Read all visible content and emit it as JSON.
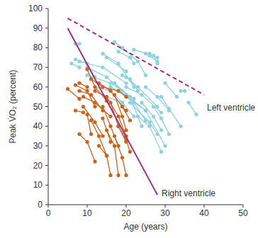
{
  "chart_data": {
    "type": "line",
    "x_label": "Age (years)",
    "y_label": "Peak V̇O₂ (percent)",
    "xlim": [
      0,
      50
    ],
    "xticks": [
      0,
      10,
      20,
      30,
      40,
      50
    ],
    "ylim": [
      0,
      100
    ],
    "yticks": [
      0,
      10,
      20,
      30,
      40,
      50,
      60,
      70,
      80,
      90,
      100
    ],
    "grid": false,
    "series": [
      {
        "color": "#8fd2df",
        "marker": "circle",
        "line_style": "solid",
        "x": [
          7,
          8
        ],
        "values": [
          82,
          82
        ]
      },
      {
        "color": "#8fd2df",
        "marker": "circle",
        "line_style": "solid",
        "x": [
          7,
          10,
          12
        ],
        "values": [
          74,
          72,
          65
        ]
      },
      {
        "color": "#8fd2df",
        "marker": "circle",
        "line_style": "solid",
        "x": [
          6,
          8
        ],
        "values": [
          72,
          70
        ]
      },
      {
        "color": "#8fd2df",
        "marker": "circle",
        "line_style": "solid",
        "x": [
          8,
          14,
          20
        ],
        "values": [
          73,
          70,
          62
        ]
      },
      {
        "color": "#8fd2df",
        "marker": "circle",
        "line_style": "solid",
        "x": [
          10,
          15,
          19
        ],
        "values": [
          70,
          65,
          58
        ]
      },
      {
        "color": "#8fd2df",
        "marker": "circle",
        "line_style": "solid",
        "x": [
          14,
          18,
          22
        ],
        "values": [
          77,
          72,
          60
        ]
      },
      {
        "color": "#8fd2df",
        "marker": "circle",
        "line_style": "solid",
        "x": [
          15,
          20
        ],
        "values": [
          75,
          68
        ]
      },
      {
        "color": "#8fd2df",
        "marker": "circle",
        "line_style": "solid",
        "x": [
          10,
          16,
          22
        ],
        "values": [
          66,
          62,
          54
        ]
      },
      {
        "color": "#8fd2df",
        "marker": "circle",
        "line_style": "solid",
        "x": [
          17,
          19,
          23,
          25
        ],
        "values": [
          83,
          80,
          73,
          66
        ]
      },
      {
        "color": "#8fd2df",
        "marker": "circle",
        "line_style": "solid",
        "x": [
          18,
          21,
          22
        ],
        "values": [
          78,
          75,
          72
        ]
      },
      {
        "color": "#8fd2df",
        "marker": "circle",
        "line_style": "solid",
        "x": [
          22,
          25,
          28
        ],
        "values": [
          79,
          77,
          75
        ]
      },
      {
        "color": "#8fd2df",
        "marker": "circle",
        "line_style": "solid",
        "x": [
          26,
          27,
          28
        ],
        "values": [
          77,
          76,
          72
        ]
      },
      {
        "color": "#8fd2df",
        "marker": "circle",
        "line_style": "solid",
        "x": [
          26,
          28
        ],
        "values": [
          76,
          73
        ]
      },
      {
        "color": "#8fd2df",
        "marker": "circle",
        "line_style": "solid",
        "x": [
          20,
          23,
          28
        ],
        "values": [
          65,
          60,
          50
        ]
      },
      {
        "color": "#8fd2df",
        "marker": "circle",
        "line_style": "solid",
        "x": [
          20,
          24,
          29
        ],
        "values": [
          60,
          56,
          47
        ]
      },
      {
        "color": "#8fd2df",
        "marker": "circle",
        "line_style": "solid",
        "x": [
          16,
          20,
          25
        ],
        "values": [
          60,
          56,
          48
        ]
      },
      {
        "color": "#8fd2df",
        "marker": "circle",
        "line_style": "solid",
        "x": [
          18,
          22,
          25
        ],
        "values": [
          58,
          52,
          43
        ]
      },
      {
        "color": "#8fd2df",
        "marker": "circle",
        "line_style": "solid",
        "x": [
          17,
          21,
          24
        ],
        "values": [
          62,
          55,
          40
        ]
      },
      {
        "color": "#8fd2df",
        "marker": "circle",
        "line_style": "solid",
        "x": [
          15,
          19,
          22
        ],
        "values": [
          55,
          52,
          45
        ]
      },
      {
        "color": "#8fd2df",
        "marker": "circle",
        "line_style": "solid",
        "x": [
          20,
          25,
          30
        ],
        "values": [
          55,
          48,
          30
        ]
      },
      {
        "color": "#8fd2df",
        "marker": "circle",
        "line_style": "solid",
        "x": [
          21,
          26,
          28
        ],
        "values": [
          52,
          42,
          36
        ]
      },
      {
        "color": "#8fd2df",
        "marker": "circle",
        "line_style": "solid",
        "x": [
          24,
          27,
          29
        ],
        "values": [
          52,
          45,
          38
        ]
      },
      {
        "color": "#8fd2df",
        "marker": "circle",
        "line_style": "solid",
        "x": [
          25,
          28,
          31
        ],
        "values": [
          60,
          55,
          48
        ]
      },
      {
        "color": "#8fd2df",
        "marker": "circle",
        "line_style": "solid",
        "x": [
          29,
          31,
          34
        ],
        "values": [
          55,
          49,
          40
        ]
      },
      {
        "color": "#8fd2df",
        "marker": "circle",
        "line_style": "solid",
        "x": [
          34,
          35
        ],
        "values": [
          58,
          58
        ]
      },
      {
        "color": "#8fd2df",
        "marker": "circle",
        "line_style": "solid",
        "x": [
          36,
          38
        ],
        "values": [
          52,
          46
        ]
      },
      {
        "color": "#8fd2df",
        "marker": "circle",
        "line_style": "solid",
        "x": [
          30,
          33
        ],
        "values": [
          62,
          55
        ]
      },
      {
        "color": "#8fd2df",
        "marker": "circle",
        "line_style": "solid",
        "x": [
          23,
          26,
          29
        ],
        "values": [
          45,
          40,
          27
        ]
      },
      {
        "color": "#8fd2df",
        "marker": "circle",
        "line_style": "solid",
        "x": [
          27,
          29,
          31
        ],
        "values": [
          50,
          44,
          36
        ]
      },
      {
        "color": "#8fd2df",
        "marker": "circle",
        "line_style": "solid",
        "x": [
          12,
          16,
          19
        ],
        "values": [
          60,
          58,
          52
        ]
      },
      {
        "color": "#8fd2df",
        "marker": "circle",
        "line_style": "solid",
        "x": [
          19,
          21,
          23
        ],
        "values": [
          66,
          64,
          58
        ]
      },
      {
        "color": "#c8641e",
        "marker": "circle",
        "line_style": "solid",
        "x": [
          5,
          8
        ],
        "values": [
          59,
          54
        ]
      },
      {
        "color": "#c8641e",
        "marker": "circle",
        "line_style": "solid",
        "x": [
          7,
          10,
          12
        ],
        "values": [
          61,
          58,
          50
        ]
      },
      {
        "color": "#c8641e",
        "marker": "circle",
        "line_style": "solid",
        "x": [
          8,
          11,
          14
        ],
        "values": [
          58,
          56,
          48
        ]
      },
      {
        "color": "#c8641e",
        "marker": "circle",
        "line_style": "solid",
        "x": [
          10,
          12,
          15
        ],
        "values": [
          69,
          60,
          53
        ]
      },
      {
        "color": "#c8641e",
        "marker": "circle",
        "line_style": "solid",
        "x": [
          11,
          14,
          18,
          20
        ],
        "values": [
          64,
          60,
          58,
          55
        ]
      },
      {
        "color": "#c8641e",
        "marker": "circle",
        "line_style": "solid",
        "x": [
          9,
          12,
          16
        ],
        "values": [
          55,
          52,
          45
        ]
      },
      {
        "color": "#c8641e",
        "marker": "circle",
        "line_style": "solid",
        "x": [
          7,
          9
        ],
        "values": [
          48,
          47
        ]
      },
      {
        "color": "#c8641e",
        "marker": "circle",
        "line_style": "solid",
        "x": [
          9,
          12,
          14
        ],
        "values": [
          50,
          42,
          35
        ]
      },
      {
        "color": "#c8641e",
        "marker": "circle",
        "line_style": "solid",
        "x": [
          8,
          10,
          12
        ],
        "values": [
          36,
          32,
          22
        ]
      },
      {
        "color": "#c8641e",
        "marker": "circle",
        "line_style": "solid",
        "x": [
          10,
          11
        ],
        "values": [
          46,
          36
        ]
      },
      {
        "color": "#c8641e",
        "marker": "circle",
        "line_style": "solid",
        "x": [
          11,
          13,
          15
        ],
        "values": [
          43,
          35,
          25
        ]
      },
      {
        "color": "#c8641e",
        "marker": "circle",
        "line_style": "solid",
        "x": [
          12,
          15,
          18,
          20
        ],
        "values": [
          58,
          55,
          45,
          35
        ]
      },
      {
        "color": "#c8641e",
        "marker": "circle",
        "line_style": "solid",
        "x": [
          13,
          16,
          19,
          21
        ],
        "values": [
          62,
          58,
          50,
          43
        ]
      },
      {
        "color": "#c8641e",
        "marker": "circle",
        "line_style": "solid",
        "x": [
          14,
          16,
          18
        ],
        "values": [
          50,
          40,
          30
        ]
      },
      {
        "color": "#c8641e",
        "marker": "circle",
        "line_style": "solid",
        "x": [
          15,
          17,
          18
        ],
        "values": [
          38,
          30,
          15
        ]
      },
      {
        "color": "#c8641e",
        "marker": "circle",
        "line_style": "solid",
        "x": [
          13,
          15,
          16
        ],
        "values": [
          30,
          25,
          15
        ]
      },
      {
        "color": "#c8641e",
        "marker": "circle",
        "line_style": "solid",
        "x": [
          16,
          18,
          20
        ],
        "values": [
          52,
          40,
          32
        ]
      },
      {
        "color": "#c8641e",
        "marker": "circle",
        "line_style": "solid",
        "x": [
          17,
          19,
          20
        ],
        "values": [
          56,
          45,
          38
        ]
      },
      {
        "color": "#c8641e",
        "marker": "circle",
        "line_style": "solid",
        "x": [
          19,
          20
        ],
        "values": [
          50,
          48
        ]
      },
      {
        "color": "#c8641e",
        "marker": "circle",
        "line_style": "solid",
        "x": [
          17,
          19,
          20
        ],
        "values": [
          35,
          24,
          15
        ]
      },
      {
        "color": "#c8641e",
        "marker": "circle",
        "line_style": "solid",
        "x": [
          8,
          10
        ],
        "values": [
          62,
          60
        ]
      },
      {
        "color": "#c8641e",
        "marker": "circle",
        "line_style": "solid",
        "x": [
          18,
          20,
          21
        ],
        "values": [
          40,
          33,
          27
        ]
      },
      {
        "color": "#c8641e",
        "marker": "circle",
        "line_style": "solid",
        "x": [
          14,
          16
        ],
        "values": [
          44,
          32
        ]
      },
      {
        "name": "Left ventricle",
        "color": "#a0307f",
        "marker": "none",
        "line_style": "dashed",
        "x": [
          5,
          40
        ],
        "values": [
          95,
          56
        ]
      },
      {
        "name": "Right ventricle",
        "color": "#a0307f",
        "marker": "none",
        "line_style": "solid",
        "x": [
          5,
          28
        ],
        "values": [
          90,
          5
        ]
      }
    ]
  }
}
